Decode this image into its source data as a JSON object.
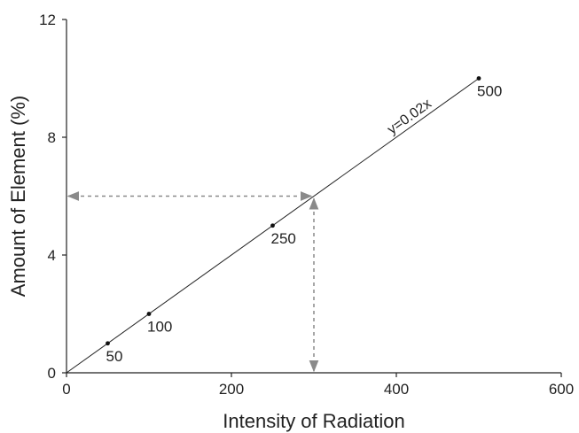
{
  "chart_data": {
    "type": "scatter",
    "title": "",
    "xlabel": "Intensity of Radiation",
    "ylabel": "Amount of Element (%)",
    "xlim": [
      0,
      600
    ],
    "ylim": [
      0,
      12
    ],
    "xticks": [
      0,
      200,
      400,
      600
    ],
    "yticks": [
      0,
      4,
      8,
      12
    ],
    "grid": false,
    "series": [
      {
        "points": [
          {
            "x": 50,
            "y": 1,
            "label": "50"
          },
          {
            "x": 100,
            "y": 2,
            "label": "100"
          },
          {
            "x": 250,
            "y": 5,
            "label": "250"
          },
          {
            "x": 500,
            "y": 10,
            "label": "500"
          }
        ]
      }
    ],
    "fit_line": {
      "equation": "y=0.02x",
      "slope": 0.02,
      "x_range": [
        0,
        500
      ]
    },
    "reading_guide": {
      "x": 300,
      "y": 6
    }
  }
}
